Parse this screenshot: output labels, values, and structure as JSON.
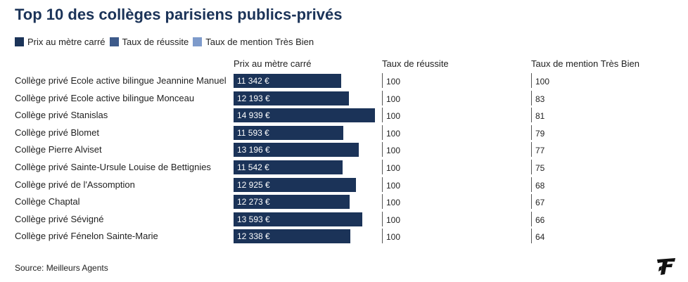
{
  "title": "Top 10 des collèges parisiens publics-privés",
  "legend": [
    {
      "label": "Prix au mètre carré",
      "color": "#1b3358"
    },
    {
      "label": "Taux de réussite",
      "color": "#3d5a8a"
    },
    {
      "label": "Taux de mention Très Bien",
      "color": "#7e9bcb"
    }
  ],
  "columns": {
    "price": "Prix au mètre carré",
    "success": "Taux de réussite",
    "honors": "Taux de mention Très Bien"
  },
  "source": "Source: Meilleurs Agents",
  "logo_icon": "le-figaro-logo-icon",
  "chart_data": {
    "type": "bar",
    "title": "Top 10 des collèges parisiens publics-privés",
    "categories": [
      "Collège privé Ecole active bilingue Jeannine Manuel",
      "Collège privé Ecole active bilingue Monceau",
      "Collège privé Stanislas",
      "Collège privé Blomet",
      "Collège Pierre Alviset",
      "Collège privé Sainte-Ursule Louise de Bettignies",
      "Collège privé de l'Assomption",
      "Collège Chaptal",
      "Collège privé Sévigné",
      "Collège privé Fénelon Sainte-Marie"
    ],
    "series": [
      {
        "name": "Prix au mètre carré",
        "values": [
          11342,
          12193,
          14939,
          11593,
          13196,
          11542,
          12925,
          12273,
          13593,
          12338
        ],
        "labels": [
          "11 342 €",
          "12 193 €",
          "14 939 €",
          "11 593 €",
          "13 196 €",
          "11 542 €",
          "12 925 €",
          "12 273 €",
          "13 593 €",
          "12 338 €"
        ]
      },
      {
        "name": "Taux de réussite",
        "values": [
          100,
          100,
          100,
          100,
          100,
          100,
          100,
          100,
          100,
          100
        ]
      },
      {
        "name": "Taux de mention Très Bien",
        "values": [
          100,
          83,
          81,
          79,
          77,
          75,
          68,
          67,
          66,
          64
        ]
      }
    ],
    "xlabel": "",
    "ylabel": "",
    "legend": "top-left"
  }
}
